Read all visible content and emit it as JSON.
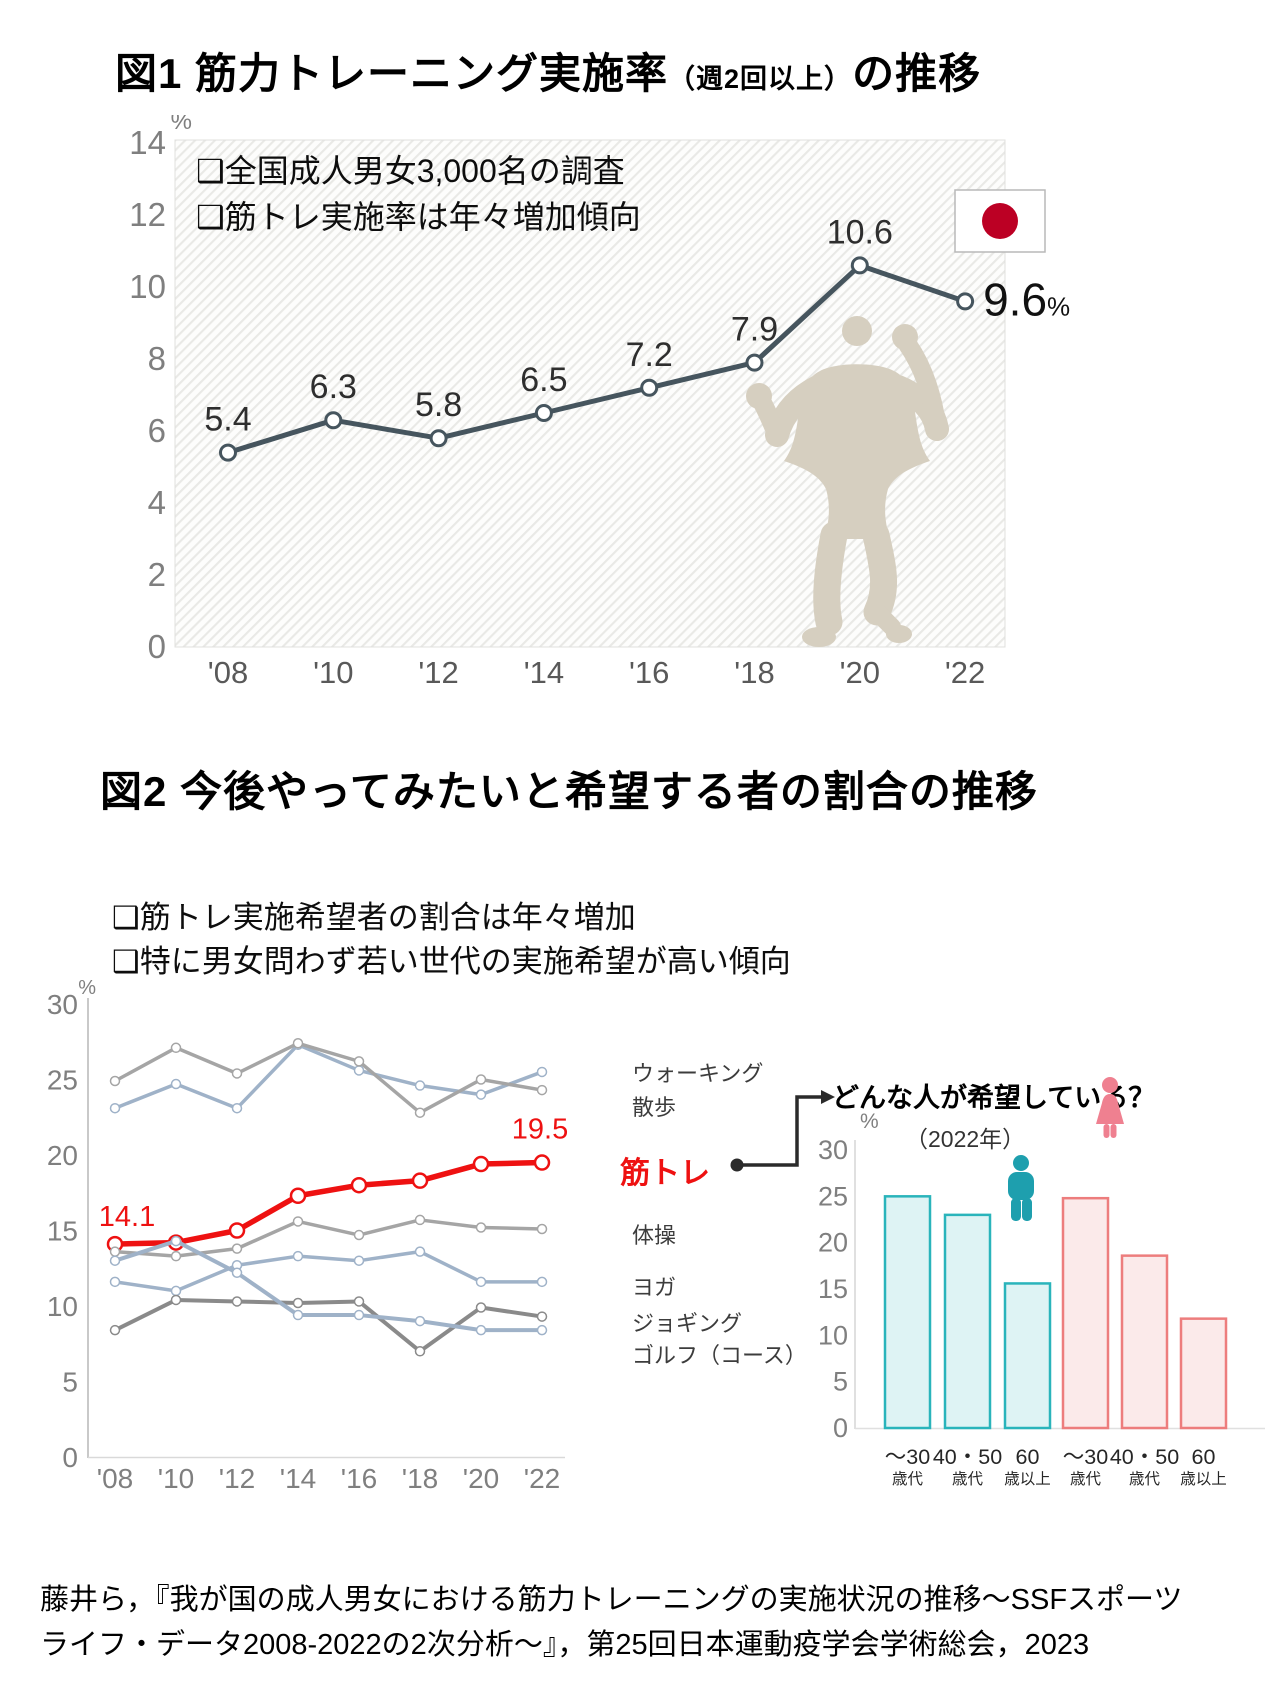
{
  "colors": {
    "fig1_line": "#46555e",
    "hatch": "#e9e9e6",
    "hatch_bg": "#fdfdfc",
    "silhouette": "#d6cfc0",
    "flag_red": "#bc0024",
    "flag_border": "#b9b9b9",
    "red": "#ee1111",
    "blue_gray": "#9fb2c8",
    "gray": "#a5a5a5",
    "dark_gray": "#8a8a8a",
    "male": "#1e9fae",
    "male_fill": "#def3f4",
    "male_stroke": "#2ab4bb",
    "female": "#ef8090",
    "female_fill": "#fbeaea",
    "female_stroke": "#ed7d7d",
    "axis_text": "#7f7f7f",
    "label_text": "#333333",
    "connector": "#2b2b2b"
  },
  "fig1": {
    "title_main": "図1 筋力トレーニング実施率",
    "title_paren": "（週2回以上）",
    "title_suffix": "の推移",
    "notes": [
      "❑全国成人男女3,000名の調査",
      "❑筋トレ実施率は年々増加傾向"
    ]
  },
  "fig2": {
    "title": "図2 今後やってみたいと希望する者の割合の推移",
    "notes": [
      "❑筋トレ実施希望者の割合は年々増加",
      "❑特に男女問わず若い世代の実施希望が高い傾向"
    ],
    "question": "どんな人が希望している？",
    "question_year": "（2022年）"
  },
  "footer": {
    "text": "藤井ら，『我が国の成人男女における筋力トレーニングの実施状況の推移～SSFスポーツライフ・データ2008-2022の2次分析～』，第25回日本運動疫学会学術総会，2023"
  },
  "chart_data": [
    {
      "id": "fig1_training_rate",
      "type": "line",
      "title": "筋力トレーニング実施率（週2回以上）の推移",
      "ylabel": "%",
      "ylim": [
        0,
        14
      ],
      "yticks": [
        0,
        2,
        4,
        6,
        8,
        10,
        12,
        14
      ],
      "categories": [
        "'08",
        "'10",
        "'12",
        "'14",
        "'16",
        "'18",
        "'20",
        "'22"
      ],
      "values": [
        5.4,
        6.3,
        5.8,
        6.5,
        7.2,
        7.9,
        10.6,
        9.6
      ],
      "last_label": "9.6",
      "last_label_suffix": "%",
      "grid": false,
      "legend": "none"
    },
    {
      "id": "fig2_wish_rate",
      "type": "line",
      "title": "今後やってみたいと希望する者の割合の推移",
      "ylabel": "%",
      "ylim": [
        0,
        30
      ],
      "yticks": [
        0,
        5,
        10,
        15,
        20,
        25,
        30
      ],
      "categories": [
        "'08",
        "'10",
        "'12",
        "'14",
        "'16",
        "'18",
        "'20",
        "'22"
      ],
      "series": [
        {
          "name": "ウォーキング",
          "color_key": "blue_gray",
          "width": 3.5,
          "marker": 4.5,
          "values": [
            23.1,
            24.7,
            23.1,
            27.3,
            25.6,
            24.6,
            24.0,
            25.5
          ]
        },
        {
          "name": "散歩",
          "color_key": "gray",
          "width": 3.5,
          "marker": 4.5,
          "values": [
            24.9,
            27.1,
            25.4,
            27.4,
            26.2,
            22.8,
            25.0,
            24.3
          ]
        },
        {
          "name": "筋トレ",
          "color_key": "red",
          "width": 5.5,
          "marker": 7,
          "highlight": true,
          "values": [
            14.1,
            14.2,
            15.0,
            17.3,
            18.0,
            18.3,
            19.4,
            19.5
          ]
        },
        {
          "name": "体操",
          "color_key": "gray",
          "width": 3.5,
          "marker": 4.5,
          "values": [
            13.6,
            13.3,
            13.8,
            15.6,
            14.7,
            15.7,
            15.2,
            15.1
          ]
        },
        {
          "name": "ヨガ",
          "color_key": "blue_gray",
          "width": 3.5,
          "marker": 4.5,
          "values": [
            11.6,
            11.0,
            12.7,
            13.3,
            13.0,
            13.6,
            11.6,
            11.6
          ]
        },
        {
          "name": "ジョギング",
          "color_key": "dark_gray",
          "width": 4,
          "marker": 4.5,
          "values": [
            8.4,
            10.4,
            10.3,
            10.2,
            10.3,
            7.0,
            9.9,
            9.3
          ]
        },
        {
          "name": "ゴルフ（コース）",
          "color_key": "blue_gray",
          "width": 4,
          "marker": 4.5,
          "values": [
            13.0,
            14.3,
            12.2,
            9.4,
            9.4,
            9.0,
            8.4,
            8.4
          ]
        }
      ],
      "annotations": {
        "first_point_label": "14.1",
        "last_point_label": "19.5"
      },
      "grid": false,
      "legend": "right-labels"
    },
    {
      "id": "fig2_who_wishes",
      "type": "bar",
      "title": "どんな人が希望している？",
      "subtitle": "（2022年）",
      "ylabel": "%",
      "ylim": [
        0,
        30
      ],
      "yticks": [
        0,
        5,
        10,
        15,
        20,
        25,
        30
      ],
      "categories": [
        [
          "～30",
          "歳代"
        ],
        [
          "40・50",
          "歳代"
        ],
        [
          "60",
          "歳以上"
        ],
        [
          "～30",
          "歳代"
        ],
        [
          "40・50",
          "歳代"
        ],
        [
          "60",
          "歳以上"
        ]
      ],
      "series": [
        {
          "name": "男性",
          "values": [
            25.0,
            23.0,
            15.6
          ]
        },
        {
          "name": "女性",
          "values": [
            24.8,
            18.6,
            11.8
          ]
        }
      ],
      "grid": false
    }
  ]
}
